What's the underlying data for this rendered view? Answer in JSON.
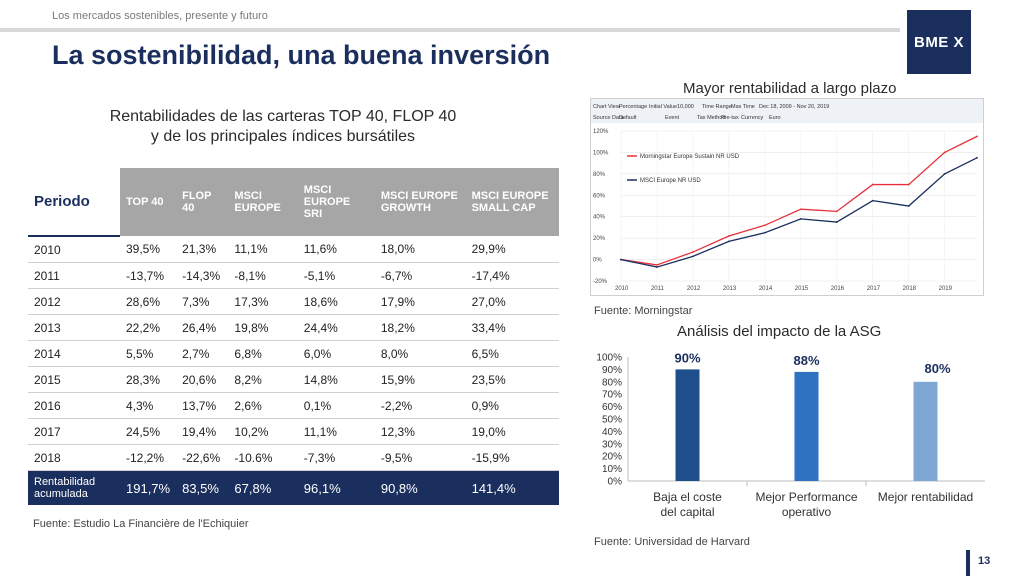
{
  "header": {
    "subtitle": "Los mercados sostenibles, presente y futuro",
    "title": "La sostenibilidad, una buena inversión",
    "logo": "BME X"
  },
  "table": {
    "title_line1": "Rentabilidades de las carteras TOP 40, FLOP 40",
    "title_line2": "y de los principales índices bursátiles",
    "period_label": "Periodo",
    "headers": [
      "TOP 40",
      "FLOP 40",
      "MSCI EUROPE",
      "MSCI EUROPE SRI",
      "MSCI EUROPE GROWTH",
      "MSCI EUROPE SMALL CAP"
    ],
    "rows": [
      [
        "2010",
        "39,5%",
        "21,3%",
        "11,1%",
        "11,6%",
        "18,0%",
        "29,9%"
      ],
      [
        "2011",
        "-13,7%",
        "-14,3%",
        "-8,1%",
        "-5,1%",
        "-6,7%",
        "-17,4%"
      ],
      [
        "2012",
        "28,6%",
        "7,3%",
        "17,3%",
        "18,6%",
        "17,9%",
        "27,0%"
      ],
      [
        "2013",
        "22,2%",
        "26,4%",
        "19,8%",
        "24,4%",
        "18,2%",
        "33,4%"
      ],
      [
        "2014",
        "5,5%",
        "2,7%",
        "6,8%",
        "6,0%",
        "8,0%",
        "6,5%"
      ],
      [
        "2015",
        "28,3%",
        "20,6%",
        "8,2%",
        "14,8%",
        "15,9%",
        "23,5%"
      ],
      [
        "2016",
        "4,3%",
        "13,7%",
        "2,6%",
        "0,1%",
        "-2,2%",
        "0,9%"
      ],
      [
        "2017",
        "24,5%",
        "19,4%",
        "10,2%",
        "11,1%",
        "12,3%",
        "19,0%"
      ],
      [
        "2018",
        "-12,2%",
        "-22,6%",
        "-10.6%",
        "-7,3%",
        "-9,5%",
        "-15,9%"
      ]
    ],
    "total": [
      "Rentabilidad acumulada",
      "191,7%",
      "83,5%",
      "67,8%",
      "96,1%",
      "90,8%",
      "141,4%"
    ],
    "source": "Fuente: Estudio La Financière de l'Echiquier"
  },
  "long_term": {
    "title": "Mayor rentabilidad a largo plazo",
    "source": "Fuente: Morningstar",
    "controls": [
      "Chart View",
      "Percentage",
      "Initial Value",
      "10,000",
      "Time Range",
      "Max Time",
      "Dec 18, 2009 - Nov 20, 2019",
      "Source Data",
      "Default",
      "Event",
      "Tax Method",
      "Pre-tax",
      "Currency",
      "Euro"
    ],
    "colors": {
      "sust": "#e8313a",
      "msci": "#1b2f5e"
    }
  },
  "esg": {
    "title": "Análisis del impacto de la ASG",
    "source": "Fuente: Universidad de Harvard",
    "colors": [
      "#1f4e8c",
      "#2e72c2",
      "#7fa7d6"
    ]
  },
  "chart_data": [
    {
      "type": "line",
      "title": "Mayor rentabilidad a largo plazo",
      "xlabel": "",
      "ylabel": "",
      "x": [
        2010,
        2011,
        2012,
        2013,
        2014,
        2015,
        2016,
        2017,
        2018,
        2019,
        2019.9
      ],
      "x_ticks": [
        "2010",
        "2011",
        "2012",
        "2013",
        "2014",
        "2015",
        "2016",
        "2017",
        "2018",
        "2019"
      ],
      "y_ticks": [
        "-20%",
        "0%",
        "20%",
        "40%",
        "60%",
        "80%",
        "100%",
        "120%"
      ],
      "ylim": [
        -20,
        120
      ],
      "series": [
        {
          "name": "Morningstar Europe Sustain NR USD",
          "values": [
            0,
            -5,
            7,
            22,
            32,
            47,
            45,
            70,
            70,
            100,
            115
          ]
        },
        {
          "name": "MSCI Europe NR USD",
          "values": [
            0,
            -7,
            3,
            17,
            25,
            38,
            35,
            55,
            50,
            80,
            95
          ]
        }
      ],
      "legend": "top-left",
      "grid": true
    },
    {
      "type": "bar",
      "title": "Análisis del impacto de la ASG",
      "categories": [
        "Baja el coste del capital",
        "Mejor Performance operativo",
        "Mejor rentabilidad"
      ],
      "values": [
        90,
        88,
        80
      ],
      "value_labels": [
        "90%",
        "88%",
        "80%"
      ],
      "y_ticks": [
        "0%",
        "10%",
        "20%",
        "30%",
        "40%",
        "50%",
        "60%",
        "70%",
        "80%",
        "90%",
        "100%"
      ],
      "ylim": [
        0,
        100
      ]
    }
  ],
  "page": {
    "number": "13"
  }
}
